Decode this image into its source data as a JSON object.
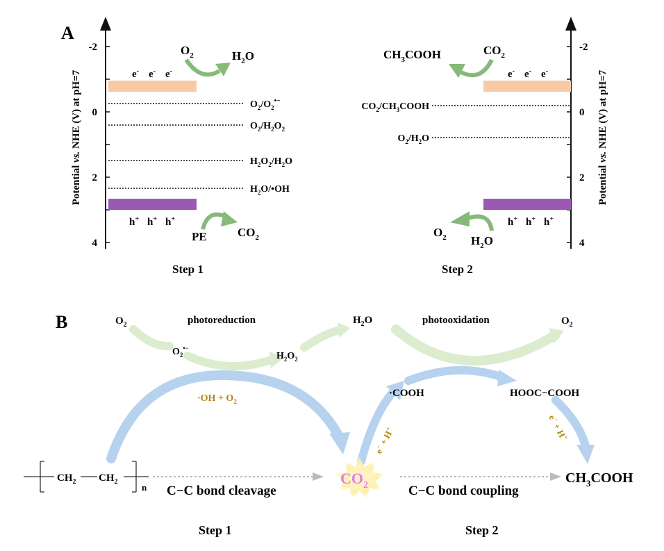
{
  "panelA": {
    "label": "A",
    "axis_label_prefix": "Potential ",
    "axis_label_vs": "vs.",
    "axis_label_suffix": " NHE (V) at pH=7",
    "left_ticks": [
      "-2",
      "0",
      "2",
      "4"
    ],
    "right_ticks": [
      "-2",
      "0",
      "2",
      "4"
    ],
    "step1": {
      "title": "Step 1",
      "electrons": [
        "e",
        "e",
        "e"
      ],
      "holes": [
        "h",
        "h",
        "h"
      ],
      "reactant_top": "O",
      "reactant_top_sub": "2",
      "product_top": "H",
      "product_top_sub": "2",
      "product_top_end": "O",
      "reactant_bottom": "PE",
      "product_bottom": "CO",
      "product_bottom_sub": "2",
      "levels": [
        {
          "a": "O",
          "s1": "2",
          "m": "/O",
          "s2": "2",
          "e": "",
          "sup": "•−"
        },
        {
          "a": "O",
          "s1": "2",
          "m": "/H",
          "s2": "2",
          "e": "O",
          "s3": "2"
        },
        {
          "a": "H",
          "s1": "2",
          "m": "O",
          "s2": "2",
          "e": "/H",
          "s3": "2",
          "f": "O"
        },
        {
          "a": "H",
          "s1": "2",
          "m": "O/•OH"
        }
      ],
      "cb_color": "#f7c9a4",
      "vb_color": "#9b59b6"
    },
    "step2": {
      "title": "Step 2",
      "electrons": [
        "e",
        "e",
        "e"
      ],
      "holes": [
        "h",
        "h",
        "h"
      ],
      "product_top": "CH",
      "product_top_sub": "3",
      "product_top_end": "COOH",
      "reactant_top": "CO",
      "reactant_top_sub": "2",
      "product_bottom": "O",
      "product_bottom_sub": "2",
      "reactant_bottom": "H",
      "reactant_bottom_sub": "2",
      "reactant_bottom_end": "O",
      "level1": {
        "a": "CO",
        "s1": "2",
        "m": "/CH",
        "s2": "3",
        "e": "COOH"
      },
      "level2": {
        "a": "O",
        "s1": "2",
        "m": "/H",
        "s2": "2",
        "e": "O"
      }
    }
  },
  "panelB": {
    "label": "B",
    "o2_left": "O",
    "o2_left_sub": "2",
    "photoreduction": "photoreduction",
    "superoxide": "O",
    "superoxide_sub": "2",
    "superoxide_sup": "•−",
    "h2o2": "H",
    "h2o2_sub": "2",
    "h2o2_mid": "O",
    "h2o2_sub2": "2",
    "h2o": "H",
    "h2o_sub": "2",
    "h2o_end": "O",
    "photooxidation": "photooxidation",
    "o2_right": "O",
    "o2_right_sub": "2",
    "oh_o2": "·OH + O",
    "oh_o2_sub": "2",
    "cooh": "·COOH",
    "oxalic": "HOOC−COOH",
    "eh1": "e",
    "eh1_sup": "−",
    "eh1_mid": " + H",
    "eh1_sup2": "+",
    "eh2": "e",
    "eh2_sup": "−",
    "eh2_mid": " + H",
    "eh2_sup2": "+",
    "pe_ch2a": "CH",
    "pe_ch2a_sub": "2",
    "pe_ch2b": "CH",
    "pe_ch2b_sub": "2",
    "pe_n": "n",
    "co2": "CO",
    "co2_sub": "2",
    "cleavage": "C−C bond cleavage",
    "coupling": "C−C bond coupling",
    "acetic": "CH",
    "acetic_sub": "3",
    "acetic_end": "COOH",
    "step1": "Step 1",
    "step2": "Step 2",
    "arrow_blue": "#a9c8e8",
    "arrow_green": "#cfe3bf",
    "gold": "#b8860b",
    "co2_pink": "#e87be8"
  }
}
